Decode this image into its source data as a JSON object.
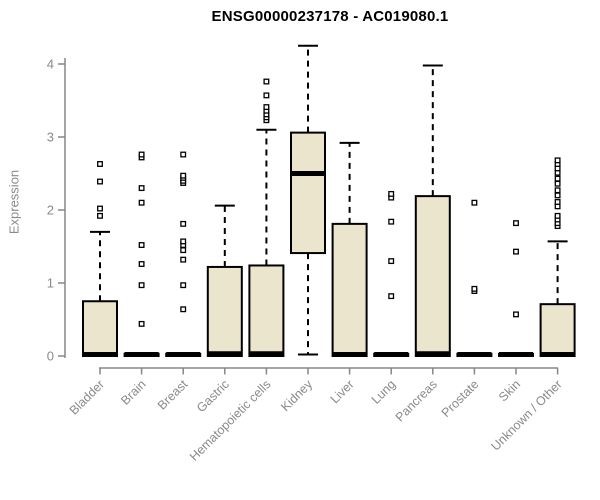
{
  "chart_data": {
    "type": "box",
    "title": "ENSG00000237178 - AC019080.1",
    "ylabel": "Expression",
    "xlabel": "",
    "ylim": [
      0,
      4.3
    ],
    "yticks": [
      0,
      1,
      2,
      3,
      4
    ],
    "grid": false,
    "legend": "none",
    "colors": {
      "box_fill": "#ece5cd",
      "box_stroke": "#000000",
      "median": "#000000",
      "whisker": "#000000",
      "outlier_fill": "#ffffff",
      "outlier_stroke": "#000000",
      "axis": "#878787",
      "tick_label": "#8a8a8a",
      "title": "#000000",
      "background": "#ffffff"
    },
    "categories": [
      "Bladder",
      "Brain",
      "Breast",
      "Gastric",
      "Hematopoietic cells",
      "Kidney",
      "Liver",
      "Lung",
      "Pancreas",
      "Prostate",
      "Skin",
      "Unknown / Other"
    ],
    "boxes": [
      {
        "label": "Bladder",
        "q1": 0,
        "median": 0.02,
        "q3": 0.75,
        "whisker_low": 0,
        "whisker_high": 1.7,
        "outliers": [
          1.92,
          2.02,
          2.39,
          2.63
        ]
      },
      {
        "label": "Brain",
        "q1": 0,
        "median": 0.02,
        "q3": 0.03,
        "whisker_low": 0,
        "whisker_high": 0.04,
        "outliers": [
          0.44,
          0.97,
          1.26,
          1.52,
          2.1,
          2.3,
          2.72,
          2.76
        ]
      },
      {
        "label": "Breast",
        "q1": 0,
        "median": 0.02,
        "q3": 0.03,
        "whisker_low": 0,
        "whisker_high": 0.04,
        "outliers": [
          0.64,
          0.97,
          1.32,
          1.45,
          1.52,
          1.57,
          1.81,
          2.37,
          2.4,
          2.44,
          2.47,
          2.76
        ]
      },
      {
        "label": "Gastric",
        "q1": 0,
        "median": 0.03,
        "q3": 1.22,
        "whisker_low": 0,
        "whisker_high": 2.06,
        "outliers": []
      },
      {
        "label": "Hematopoietic cells",
        "q1": 0,
        "median": 0.03,
        "q3": 1.24,
        "whisker_low": 0,
        "whisker_high": 3.1,
        "outliers": [
          3.23,
          3.27,
          3.31,
          3.36,
          3.41,
          3.57,
          3.76
        ]
      },
      {
        "label": "Kidney",
        "q1": 1.41,
        "median": 2.5,
        "q3": 3.06,
        "whisker_low": 0.02,
        "whisker_high": 4.25,
        "outliers": []
      },
      {
        "label": "Liver",
        "q1": 0,
        "median": 0.02,
        "q3": 1.81,
        "whisker_low": 0,
        "whisker_high": 2.92,
        "outliers": []
      },
      {
        "label": "Lung",
        "q1": 0,
        "median": 0.02,
        "q3": 0.03,
        "whisker_low": 0,
        "whisker_high": 0.04,
        "outliers": [
          0.82,
          1.3,
          1.84,
          2.17,
          2.22
        ]
      },
      {
        "label": "Pancreas",
        "q1": 0,
        "median": 0.03,
        "q3": 2.19,
        "whisker_low": 0,
        "whisker_high": 3.98,
        "outliers": []
      },
      {
        "label": "Prostate",
        "q1": 0,
        "median": 0.02,
        "q3": 0.03,
        "whisker_low": 0,
        "whisker_high": 0.04,
        "outliers": [
          0.89,
          0.92,
          2.1
        ]
      },
      {
        "label": "Skin",
        "q1": 0,
        "median": 0.02,
        "q3": 0.03,
        "whisker_low": 0,
        "whisker_high": 0.04,
        "outliers": [
          0.57,
          1.43,
          1.82
        ]
      },
      {
        "label": "Unknown / Other",
        "q1": 0,
        "median": 0.02,
        "q3": 0.71,
        "whisker_low": 0,
        "whisker_high": 1.57,
        "outliers": [
          1.78,
          1.82,
          1.87,
          1.92,
          2.05,
          2.11,
          2.2,
          2.27,
          2.36,
          2.43,
          2.51,
          2.57,
          2.63,
          2.68
        ]
      }
    ]
  }
}
